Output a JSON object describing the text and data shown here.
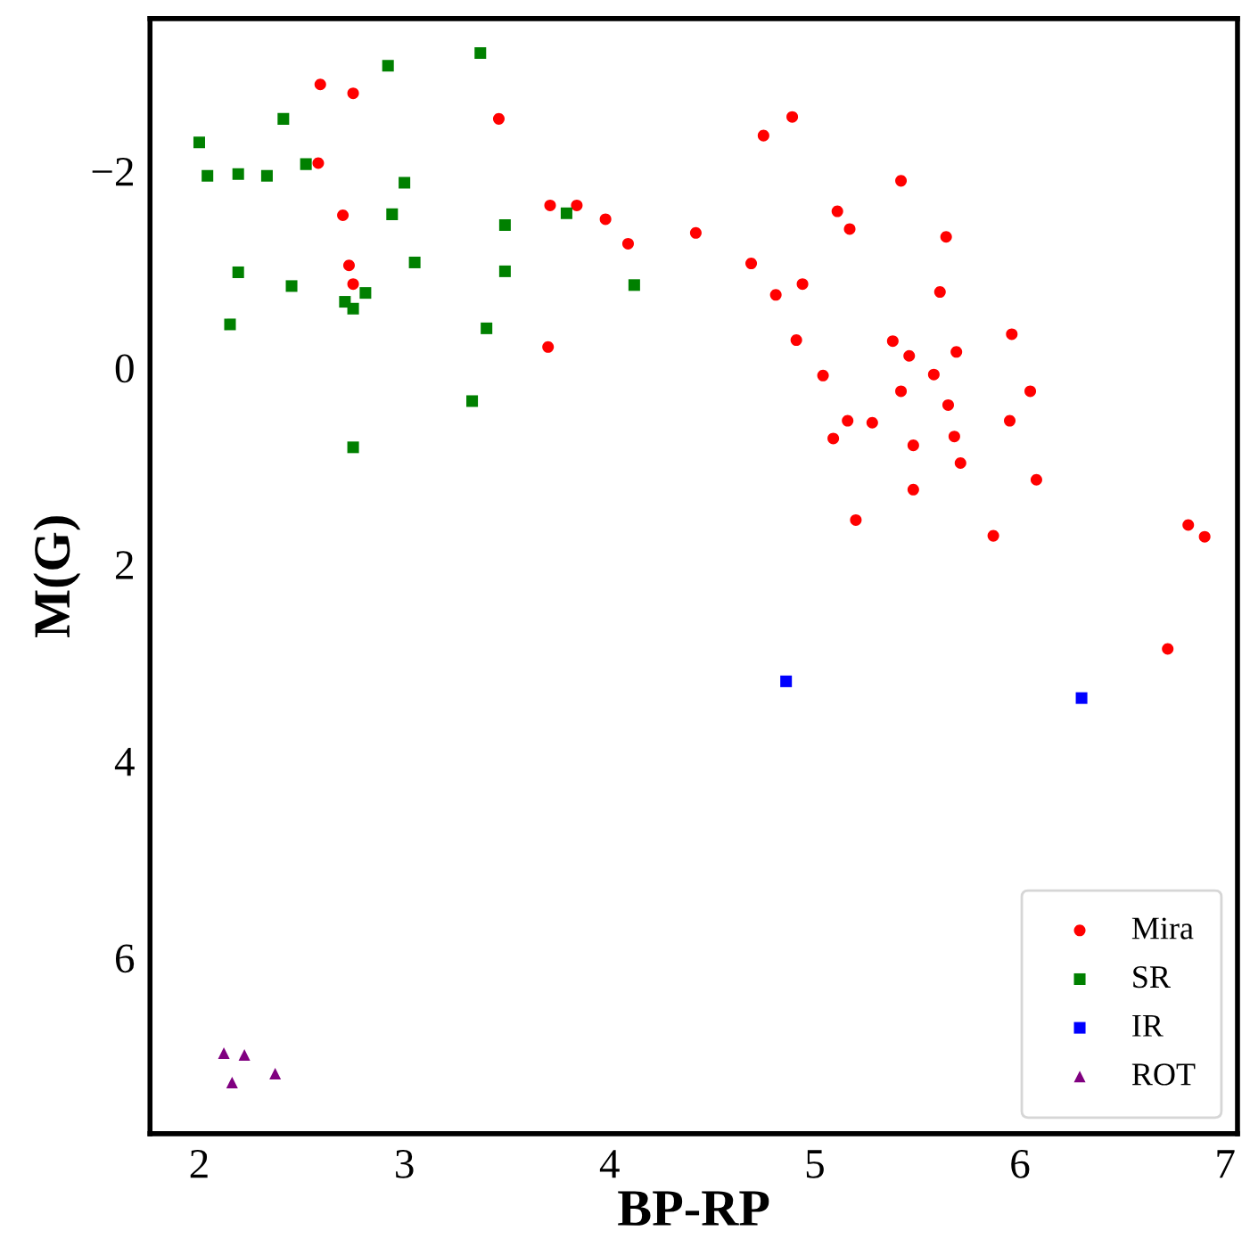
{
  "chart_data": {
    "type": "scatter",
    "xlabel": "BP-RP",
    "ylabel": "M(G)",
    "xlim": [
      1.76,
      7.06
    ],
    "ylim": [
      7.79,
      -3.55
    ],
    "xticks": [
      2,
      3,
      4,
      5,
      6,
      7
    ],
    "yticks": [
      {
        "value": -2,
        "label": "−2"
      },
      0,
      2,
      4,
      6
    ],
    "grid": false,
    "legend": "bottom right",
    "series": [
      {
        "name": "Mira",
        "color": "#ff0000",
        "marker": "circle",
        "x": [
          2.59,
          2.75,
          3.46,
          2.58,
          2.7,
          2.73,
          2.75,
          3.71,
          3.84,
          3.98,
          4.09,
          3.7,
          4.89,
          4.75,
          5.42,
          5.11,
          5.17,
          4.42,
          5.64,
          4.69,
          4.94,
          4.81,
          5.61,
          4.91,
          5.38,
          5.46,
          5.69,
          5.96,
          5.04,
          5.58,
          5.42,
          5.65,
          6.05,
          5.16,
          5.28,
          5.09,
          5.95,
          5.68,
          5.48,
          5.71,
          6.08,
          5.48,
          5.2,
          5.87,
          6.82,
          6.9,
          6.72
        ],
        "values": [
          -2.88,
          -2.79,
          -2.53,
          -2.08,
          -1.55,
          -1.04,
          -0.85,
          -1.65,
          -1.65,
          -1.51,
          -1.26,
          -0.21,
          -2.55,
          -2.36,
          -1.9,
          -1.59,
          -1.41,
          -1.37,
          -1.33,
          -1.06,
          -0.85,
          -0.74,
          -0.77,
          -0.28,
          -0.27,
          -0.12,
          -0.16,
          -0.34,
          0.08,
          0.07,
          0.24,
          0.38,
          0.24,
          0.54,
          0.56,
          0.72,
          0.54,
          0.7,
          0.79,
          0.97,
          1.14,
          1.24,
          1.55,
          1.71,
          1.6,
          1.72,
          2.86
        ]
      },
      {
        "name": "SR",
        "color": "#008000",
        "marker": "square",
        "x": [
          2.0,
          2.04,
          2.19,
          2.33,
          2.41,
          2.52,
          2.92,
          3.0,
          2.94,
          3.05,
          3.37,
          3.49,
          3.49,
          2.19,
          2.45,
          2.15,
          2.71,
          2.75,
          2.81,
          3.4,
          3.33,
          2.75,
          3.79,
          4.12
        ],
        "values": [
          -2.29,
          -1.95,
          -1.97,
          -1.95,
          -2.53,
          -2.07,
          -3.07,
          -1.88,
          -1.56,
          -1.07,
          -3.2,
          -1.45,
          -0.98,
          -0.97,
          -0.83,
          -0.44,
          -0.67,
          -0.6,
          -0.76,
          -0.4,
          0.34,
          0.81,
          -1.57,
          -0.84
        ]
      },
      {
        "name": "IR",
        "color": "#0000ff",
        "marker": "square",
        "x": [
          4.86,
          6.3
        ],
        "values": [
          3.19,
          3.36
        ]
      },
      {
        "name": "ROT",
        "color": "#800080",
        "marker": "triangle",
        "x": [
          2.12,
          2.22,
          2.16,
          2.37
        ],
        "values": [
          6.97,
          6.99,
          7.27,
          7.18
        ]
      }
    ]
  }
}
